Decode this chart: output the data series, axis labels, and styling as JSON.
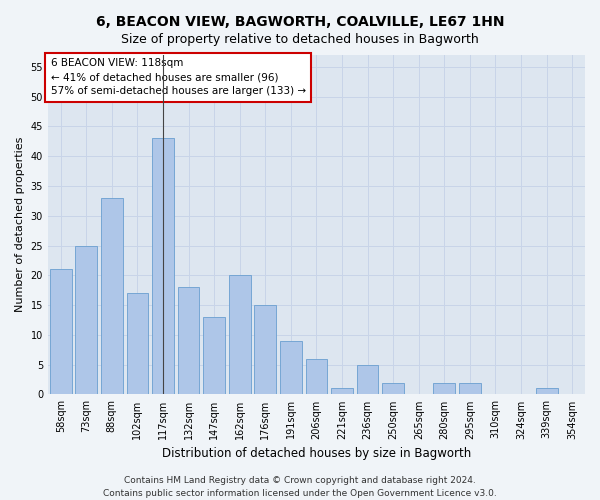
{
  "title": "6, BEACON VIEW, BAGWORTH, COALVILLE, LE67 1HN",
  "subtitle": "Size of property relative to detached houses in Bagworth",
  "xlabel": "Distribution of detached houses by size in Bagworth",
  "ylabel": "Number of detached properties",
  "categories": [
    "58sqm",
    "73sqm",
    "88sqm",
    "102sqm",
    "117sqm",
    "132sqm",
    "147sqm",
    "162sqm",
    "176sqm",
    "191sqm",
    "206sqm",
    "221sqm",
    "236sqm",
    "250sqm",
    "265sqm",
    "280sqm",
    "295sqm",
    "310sqm",
    "324sqm",
    "339sqm",
    "354sqm"
  ],
  "values": [
    21,
    25,
    33,
    17,
    43,
    18,
    13,
    20,
    15,
    9,
    6,
    1,
    5,
    2,
    0,
    2,
    2,
    0,
    0,
    1,
    0
  ],
  "bar_color": "#aec6e8",
  "bar_edge_color": "#6a9fd0",
  "highlight_index": 4,
  "highlight_line_color": "#444444",
  "ylim": [
    0,
    57
  ],
  "yticks": [
    0,
    5,
    10,
    15,
    20,
    25,
    30,
    35,
    40,
    45,
    50,
    55
  ],
  "annotation_box_text": "6 BEACON VIEW: 118sqm\n← 41% of detached houses are smaller (96)\n57% of semi-detached houses are larger (133) →",
  "annotation_box_color": "#ffffff",
  "annotation_box_edge_color": "#cc0000",
  "footer_line1": "Contains HM Land Registry data © Crown copyright and database right 2024.",
  "footer_line2": "Contains public sector information licensed under the Open Government Licence v3.0.",
  "grid_color": "#c8d4e8",
  "bg_color": "#dde6f0",
  "title_fontsize": 10,
  "subtitle_fontsize": 9,
  "tick_fontsize": 7,
  "ylabel_fontsize": 8,
  "xlabel_fontsize": 8.5,
  "footer_fontsize": 6.5,
  "annot_fontsize": 7.5
}
